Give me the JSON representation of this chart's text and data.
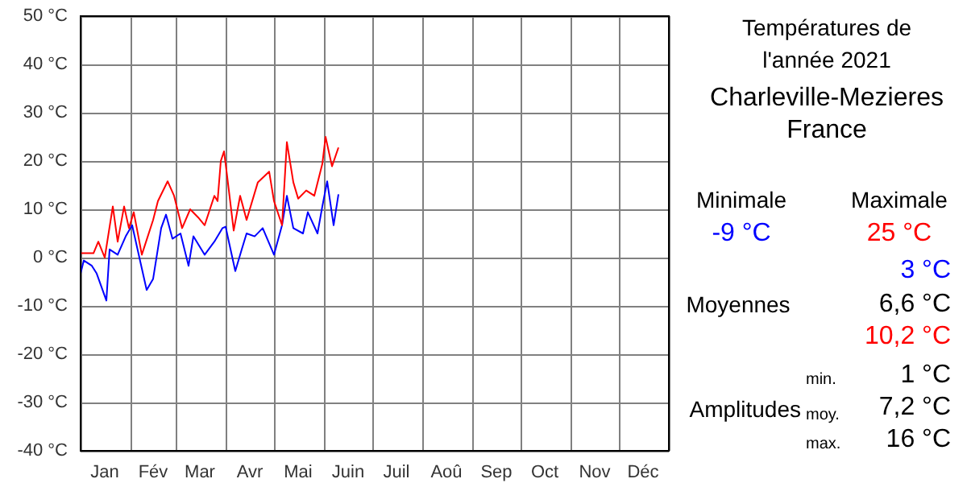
{
  "chart_data": {
    "type": "line",
    "title": "Températures de\nl'année 2021",
    "subtitle": "Charleville-Mezieres\nFrance",
    "x": [
      "2021-01-01",
      "2021-01-03",
      "2021-01-08",
      "2021-01-09",
      "2021-01-11",
      "2021-01-12",
      "2021-01-16",
      "2021-01-17",
      "2021-01-19",
      "2021-01-21",
      "2021-01-24",
      "2021-01-28",
      "2021-01-29",
      "2021-01-31",
      "2021-02-02",
      "2021-02-03",
      "2021-02-05",
      "2021-02-08",
      "2021-02-11",
      "2021-02-15",
      "2021-02-18",
      "2021-02-20",
      "2021-02-23",
      "2021-02-24",
      "2021-02-27",
      "2021-02-28",
      "2021-03-04",
      "2021-03-05",
      "2021-03-09",
      "2021-03-10",
      "2021-03-12",
      "2021-03-15",
      "2021-03-19",
      "2021-03-25",
      "2021-03-27",
      "2021-03-29",
      "2021-03-30",
      "2021-03-31",
      "2021-04-01",
      "2021-04-02",
      "2021-04-03",
      "2021-04-06",
      "2021-04-07",
      "2021-04-10",
      "2021-04-11",
      "2021-04-14",
      "2021-04-19",
      "2021-04-21",
      "2021-04-24",
      "2021-04-28",
      "2021-05-01",
      "2021-05-06",
      "2021-05-09",
      "2021-05-13",
      "2021-05-16",
      "2021-05-19",
      "2021-05-21",
      "2021-05-22",
      "2021-05-26",
      "2021-05-28",
      "2021-05-31",
      "2021-06-02",
      "2021-06-03",
      "2021-06-06",
      "2021-06-07",
      "2021-06-10"
    ],
    "series": [
      {
        "color": "#0000ff",
        "values": [
          -3.3,
          -0.6,
          -1.7,
          null,
          -3.3,
          null,
          null,
          -8.9,
          1.7,
          null,
          0.6,
          null,
          4.4,
          null,
          6.7,
          null,
          2.2,
          null,
          -6.7,
          -4.4,
          null,
          6.1,
          8.9,
          null,
          3.9,
          null,
          5,
          null,
          -1.7,
          null,
          4.4,
          null,
          0.6,
          3.3,
          null,
          null,
          6.1,
          null,
          6.4,
          null,
          3.3,
          null,
          -2.8,
          null,
          1.7,
          5,
          4.4,
          null,
          6.1,
          null,
          0.6,
          6.7,
          12.8,
          6.1,
          null,
          5,
          null,
          9.4,
          null,
          5,
          10.6,
          null,
          15.8,
          null,
          6.7,
          13.1
        ]
      },
      {
        "color": "#ff0000",
        "values": [
          0.9,
          null,
          null,
          0.9,
          null,
          3.3,
          0,
          null,
          null,
          10.6,
          3.3,
          10.6,
          null,
          6.1,
          null,
          9.4,
          null,
          0.6,
          null,
          7.8,
          11.7,
          null,
          null,
          15.8,
          null,
          12.8,
          null,
          6.1,
          null,
          10,
          null,
          8.3,
          6.7,
          12.8,
          11.7,
          20,
          null,
          22,
          null,
          16.7,
          null,
          5.6,
          null,
          12.8,
          null,
          7.8,
          null,
          15.6,
          null,
          17.8,
          11.7,
          6.7,
          23.9,
          15.6,
          12.2,
          null,
          13.9,
          null,
          12.8,
          null,
          19.4,
          25,
          null,
          18.9,
          null,
          22.8
        ]
      }
    ],
    "xlim": [
      "2021-01-01",
      "2022-01-01"
    ],
    "xticks": [
      {
        "value": "2021-01-01",
        "label": null
      },
      {
        "value": "2021-01-16",
        "label": "Jan"
      },
      {
        "value": "2021-02-01",
        "label": null
      },
      {
        "value": "2021-02-15",
        "label": "Fév"
      },
      {
        "value": "2021-03-01",
        "label": null
      },
      {
        "value": "2021-03-16",
        "label": "Mar"
      },
      {
        "value": "2021-04-01",
        "label": null
      },
      {
        "value": "2021-04-16",
        "label": "Avr"
      },
      {
        "value": "2021-05-01",
        "label": null
      },
      {
        "value": "2021-05-16",
        "label": "Mai"
      },
      {
        "value": "2021-06-01",
        "label": null
      },
      {
        "value": "2021-06-16",
        "label": "Juin"
      },
      {
        "value": "2021-07-01",
        "label": null
      },
      {
        "value": "2021-07-16",
        "label": "Juil"
      },
      {
        "value": "2021-08-01",
        "label": null
      },
      {
        "value": "2021-08-16",
        "label": "Aoû"
      },
      {
        "value": "2021-09-01",
        "label": null
      },
      {
        "value": "2021-09-16",
        "label": "Sep"
      },
      {
        "value": "2021-10-01",
        "label": null
      },
      {
        "value": "2021-10-16",
        "label": "Oct"
      },
      {
        "value": "2021-11-01",
        "label": null
      },
      {
        "value": "2021-11-16",
        "label": "Nov"
      },
      {
        "value": "2021-12-01",
        "label": null
      },
      {
        "value": "2021-12-16",
        "label": "Déc"
      },
      {
        "value": "2022-01-01",
        "label": null
      }
    ],
    "ylim": [
      -40,
      50
    ],
    "yticks": [
      {
        "value": -40,
        "label": "-40 °C"
      },
      {
        "value": -30,
        "label": "-30 °C"
      },
      {
        "value": -20,
        "label": "-20 °C"
      },
      {
        "value": -10,
        "label": "-10 °C"
      },
      {
        "value": 0,
        "label": "0 °C"
      },
      {
        "value": 10,
        "label": "10 °C"
      },
      {
        "value": 20,
        "label": "20 °C"
      },
      {
        "value": 30,
        "label": "30 °C"
      },
      {
        "value": 40,
        "label": "40 °C"
      },
      {
        "value": 50,
        "label": "50 °C"
      }
    ],
    "grid": true,
    "marker": "none",
    "line_style": "solid",
    "annotations": [
      "Minimale",
      "Maximale",
      "-9 °C",
      "25 °C",
      "3 °C",
      "Moyennes",
      "6,6 °C",
      "10,2 °C",
      "min.",
      "1 °C",
      "Amplitudes",
      "moy.",
      "7,2 °C",
      "max.",
      "16 °C"
    ]
  }
}
